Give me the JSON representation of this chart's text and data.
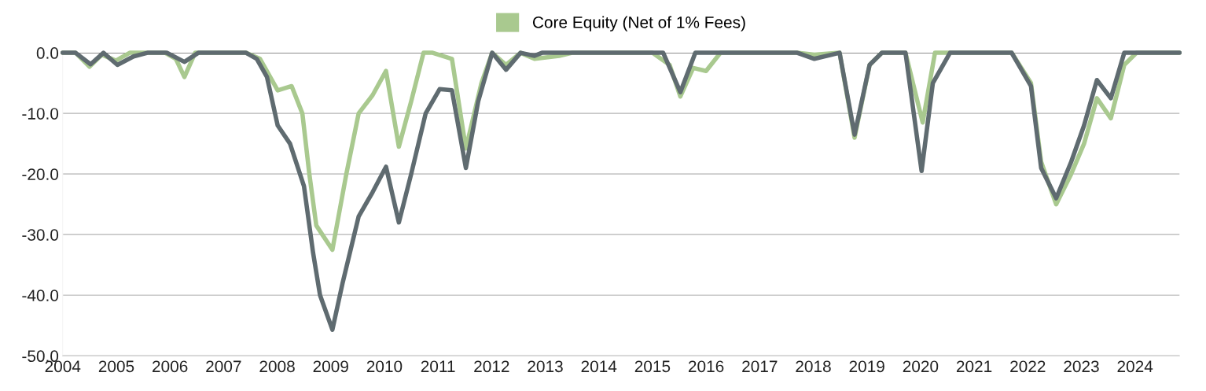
{
  "chart_data": {
    "type": "line",
    "xlim": [
      2004,
      2024.83
    ],
    "xticks": [
      2004,
      2005,
      2006,
      2007,
      2008,
      2009,
      2010,
      2011,
      2012,
      2013,
      2014,
      2015,
      2016,
      2017,
      2018,
      2019,
      2020,
      2021,
      2022,
      2023,
      2024
    ],
    "ylim": [
      -50,
      0
    ],
    "yticks": [
      {
        "value": -50,
        "label": "-50.0"
      },
      {
        "value": -40,
        "label": "-40.0"
      },
      {
        "value": -30,
        "label": "-30.0"
      },
      {
        "value": -20,
        "label": "-20.0"
      },
      {
        "value": -10,
        "label": "-10.0"
      },
      {
        "value": 0,
        "label": "0.0"
      }
    ],
    "grid": "y",
    "legend": "top",
    "line_style": "solid",
    "marker": "none",
    "ref_lines": [
      {
        "axis": "y",
        "value": 0,
        "color": "#8c8c8c"
      }
    ],
    "series": [
      {
        "name": "Core Equity (Net of 1% Fees)",
        "color": "#a9c98f",
        "x": [
          2004.0,
          2004.24,
          2004.5,
          2004.73,
          2004.99,
          2005.25,
          2005.91,
          2006.11,
          2006.27,
          2006.47,
          2007.42,
          2007.68,
          2008.01,
          2008.27,
          2008.47,
          2008.6,
          2008.73,
          2009.03,
          2009.29,
          2009.52,
          2009.78,
          2010.03,
          2010.27,
          2010.5,
          2010.73,
          2010.9,
          2011.26,
          2011.52,
          2011.81,
          2012.01,
          2012.27,
          2012.54,
          2012.8,
          2013.26,
          2013.5,
          2015.0,
          2015.32,
          2015.52,
          2015.76,
          2016.0,
          2016.27,
          2017.7,
          2018.02,
          2018.49,
          2018.77,
          2019.05,
          2019.28,
          2019.72,
          2020.04,
          2020.27,
          2021.7,
          2022.06,
          2022.25,
          2022.53,
          2022.81,
          2023.05,
          2023.29,
          2023.55,
          2023.8,
          2024.03,
          2024.83
        ],
        "values": [
          0,
          0,
          -2.3,
          -0.3,
          -1.3,
          0,
          0,
          -1,
          -4,
          0,
          0,
          -1,
          -6.2,
          -5.5,
          -10,
          -20,
          -28.5,
          -32.5,
          -20,
          -10,
          -7,
          -3,
          -15.5,
          -8,
          0,
          0,
          -1,
          -15.8,
          -5,
          0,
          -2,
          0,
          -1,
          -0.5,
          0,
          0,
          -2,
          -7.2,
          -2.5,
          -3,
          0,
          0,
          -0.3,
          0,
          -14,
          -2,
          0,
          0,
          -11.5,
          0,
          0,
          -5,
          -18,
          -25,
          -20,
          -15,
          -7.5,
          -10.8,
          -2,
          0,
          0
        ]
      },
      {
        "color": "#5f6b70",
        "x": [
          2004.0,
          2004.24,
          2004.52,
          2004.76,
          2005.02,
          2005.32,
          2005.58,
          2005.94,
          2006.27,
          2006.53,
          2007.42,
          2007.62,
          2007.81,
          2008.01,
          2008.24,
          2008.5,
          2008.67,
          2008.8,
          2009.03,
          2009.22,
          2009.52,
          2009.78,
          2010.03,
          2010.27,
          2010.5,
          2010.77,
          2011.03,
          2011.26,
          2011.52,
          2011.75,
          2012.01,
          2012.27,
          2012.54,
          2012.8,
          2012.94,
          2015.0,
          2015.2,
          2015.52,
          2015.8,
          2016.27,
          2017.7,
          2018.02,
          2018.49,
          2018.77,
          2019.05,
          2019.28,
          2019.72,
          2020.02,
          2020.23,
          2020.55,
          2021.7,
          2022.06,
          2022.25,
          2022.53,
          2022.81,
          2023.05,
          2023.29,
          2023.55,
          2023.8,
          2024.83
        ],
        "values": [
          0,
          0,
          -1.9,
          0,
          -2,
          -0.6,
          0,
          0,
          -1.5,
          0,
          0,
          -1,
          -4,
          -12,
          -15,
          -22,
          -33,
          -40,
          -45.7,
          -38,
          -27,
          -23,
          -18.8,
          -28,
          -20,
          -10,
          -6,
          -6.2,
          -19,
          -8,
          0,
          -2.8,
          0,
          -0.5,
          0,
          0,
          0,
          -6.5,
          0,
          0,
          0,
          -1,
          0,
          -13.5,
          -2,
          0,
          0,
          -19.5,
          -5,
          0,
          0,
          -5.5,
          -19,
          -24,
          -18,
          -12,
          -4.5,
          -7.5,
          0,
          0
        ]
      }
    ]
  }
}
